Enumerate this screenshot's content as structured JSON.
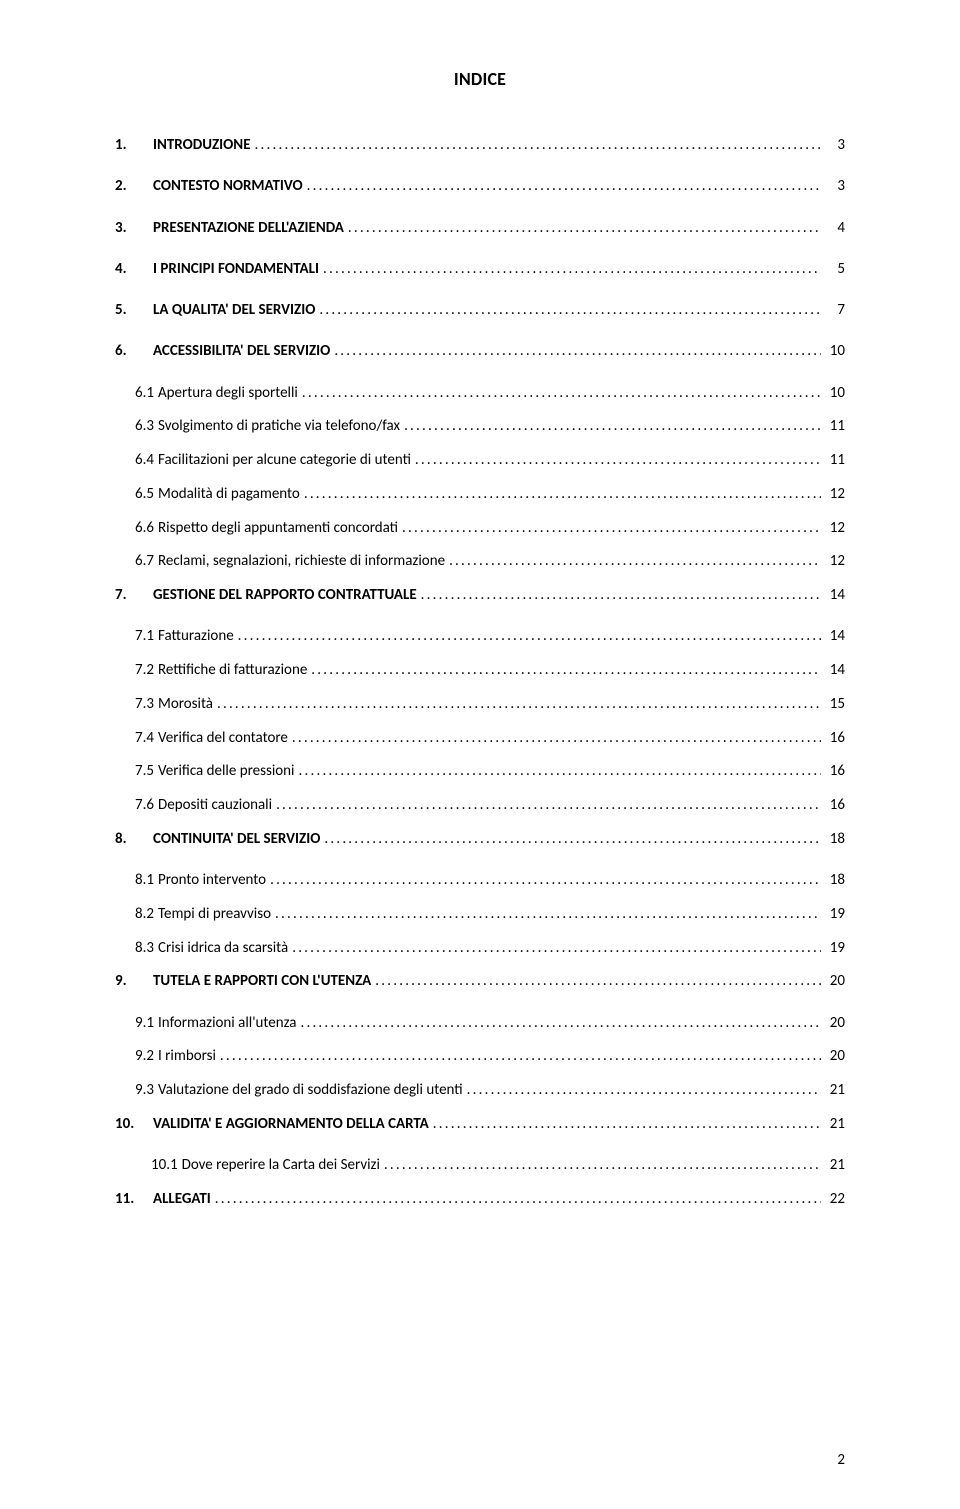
{
  "title": "INDICE",
  "page_number": "2",
  "background_color": "#ffffff",
  "text_color": "#000000",
  "font_family": "Calibri",
  "title_fontsize": 18,
  "body_fontsize": 15,
  "toc": [
    {
      "level": 1,
      "num": "1.",
      "text": "INTRODUZIONE",
      "page": "3"
    },
    {
      "level": 1,
      "num": "2.",
      "text": "CONTESTO NORMATIVO",
      "page": "3"
    },
    {
      "level": 1,
      "num": "3.",
      "text": "PRESENTAZIONE DELL'AZIENDA",
      "page": "4"
    },
    {
      "level": 1,
      "num": "4.",
      "text": "I PRINCIPI FONDAMENTALI",
      "page": "5"
    },
    {
      "level": 1,
      "num": "5.",
      "text": "LA QUALITA' DEL SERVIZIO",
      "page": "7"
    },
    {
      "level": 1,
      "num": "6.",
      "text": "ACCESSIBILITA' DEL SERVIZIO",
      "page": "10"
    },
    {
      "level": 2,
      "num": "6.1",
      "text": "Apertura degli sportelli",
      "page": "10"
    },
    {
      "level": 2,
      "num": "6.3",
      "text": "Svolgimento di pratiche via telefono/fax",
      "page": "11"
    },
    {
      "level": 2,
      "num": "6.4",
      "text": "Facilitazioni per alcune categorie di utenti",
      "page": "11"
    },
    {
      "level": 2,
      "num": "6.5",
      "text": "Modalità di pagamento",
      "page": "12"
    },
    {
      "level": 2,
      "num": "6.6",
      "text": "Rispetto degli appuntamenti concordati",
      "page": "12"
    },
    {
      "level": 2,
      "num": "6.7",
      "text": "Reclami, segnalazioni, richieste di informazione",
      "page": "12"
    },
    {
      "level": 1,
      "num": "7.",
      "text": "GESTIONE DEL RAPPORTO CONTRATTUALE",
      "page": "14"
    },
    {
      "level": 2,
      "num": "7.1",
      "text": "Fatturazione",
      "page": "14"
    },
    {
      "level": 2,
      "num": "7.2",
      "text": "Rettifiche di fatturazione",
      "page": "14"
    },
    {
      "level": 2,
      "num": "7.3",
      "text": "Morosità",
      "page": "15"
    },
    {
      "level": 2,
      "num": "7.4",
      "text": "Verifica del contatore",
      "page": "16"
    },
    {
      "level": 2,
      "num": "7.5",
      "text": "Verifica delle pressioni",
      "page": "16"
    },
    {
      "level": 2,
      "num": "7.6",
      "text": "Depositi cauzionali",
      "page": "16"
    },
    {
      "level": 1,
      "num": "8.",
      "text": "CONTINUITA' DEL SERVIZIO",
      "page": "18"
    },
    {
      "level": 2,
      "num": "8.1",
      "text": "Pronto intervento",
      "page": "18"
    },
    {
      "level": 2,
      "num": "8.2",
      "text": "Tempi di preavviso",
      "page": "19"
    },
    {
      "level": 2,
      "num": "8.3",
      "text": "Crisi idrica da scarsità",
      "page": "19"
    },
    {
      "level": 1,
      "num": "9.",
      "text": "TUTELA E RAPPORTI CON L'UTENZA",
      "page": "20"
    },
    {
      "level": 2,
      "num": "9.1",
      "text": "Informazioni all'utenza",
      "page": "20"
    },
    {
      "level": 2,
      "num": "9.2",
      "text": "I rimborsi",
      "page": "20"
    },
    {
      "level": 2,
      "num": "9.3",
      "text": "Valutazione del grado di soddisfazione degli utenti",
      "page": "21"
    },
    {
      "level": 1,
      "num": "10.",
      "text": "VALIDITA' E AGGIORNAMENTO DELLA CARTA",
      "page": "21"
    },
    {
      "level": 3,
      "num": "10.1",
      "text": "Dove reperire la Carta dei Servizi",
      "page": "21"
    },
    {
      "level": 1,
      "num": "11.",
      "text": "ALLEGATI",
      "page": "22"
    }
  ]
}
